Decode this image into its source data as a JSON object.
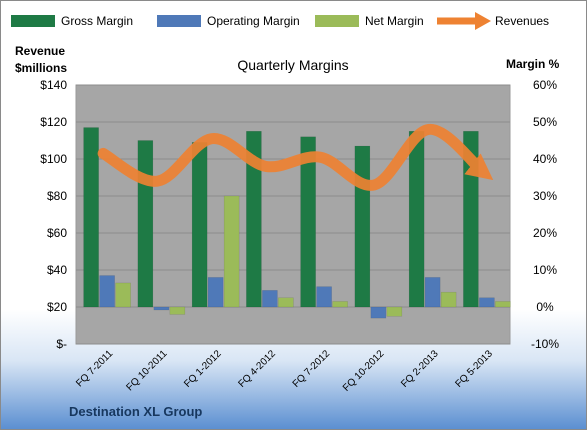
{
  "chart_data": {
    "type": "bar",
    "title": "Quarterly Margins",
    "footer": "Destination XL Group",
    "ylabel_left_line1": "Revenue",
    "ylabel_left_line2": "$millions",
    "ylabel_right": "Margin %",
    "categories": [
      "FQ 7-2011",
      "FQ 10-2011",
      "FQ 1-2012",
      "FQ 4-2012",
      "FQ 7-2012",
      "FQ 10-2012",
      "FQ 2-2013",
      "FQ 5-2013"
    ],
    "left_axis": {
      "ticks": [
        "$-",
        "$20",
        "$40",
        "$60",
        "$80",
        "$100",
        "$120",
        "$140"
      ],
      "range": [
        0,
        140
      ]
    },
    "right_axis": {
      "ticks": [
        "-10%",
        "0%",
        "10%",
        "20%",
        "30%",
        "40%",
        "50%",
        "60%"
      ],
      "range": [
        -10,
        60
      ]
    },
    "series": [
      {
        "name": "Gross Margin",
        "axis": "right",
        "unit": "%",
        "color": "#1e7a45",
        "values": [
          48.5,
          45,
          44.5,
          47.5,
          46,
          43.5,
          47.5,
          47.5
        ]
      },
      {
        "name": "Operating Margin",
        "axis": "right",
        "unit": "%",
        "color": "#4f79b8",
        "values": [
          8.5,
          -0.8,
          8,
          4.5,
          5.5,
          -3,
          8,
          2.5
        ]
      },
      {
        "name": "Net Margin",
        "axis": "right",
        "unit": "%",
        "color": "#9bbb59",
        "values": [
          6.5,
          -2,
          30,
          2.5,
          1.5,
          -2.5,
          4,
          1.5
        ]
      },
      {
        "name": "Revenues",
        "axis": "left",
        "unit": "$M",
        "color": "#ee8232",
        "type": "line",
        "values": [
          103,
          88,
          111,
          96,
          101,
          86,
          116,
          93
        ]
      }
    ]
  }
}
